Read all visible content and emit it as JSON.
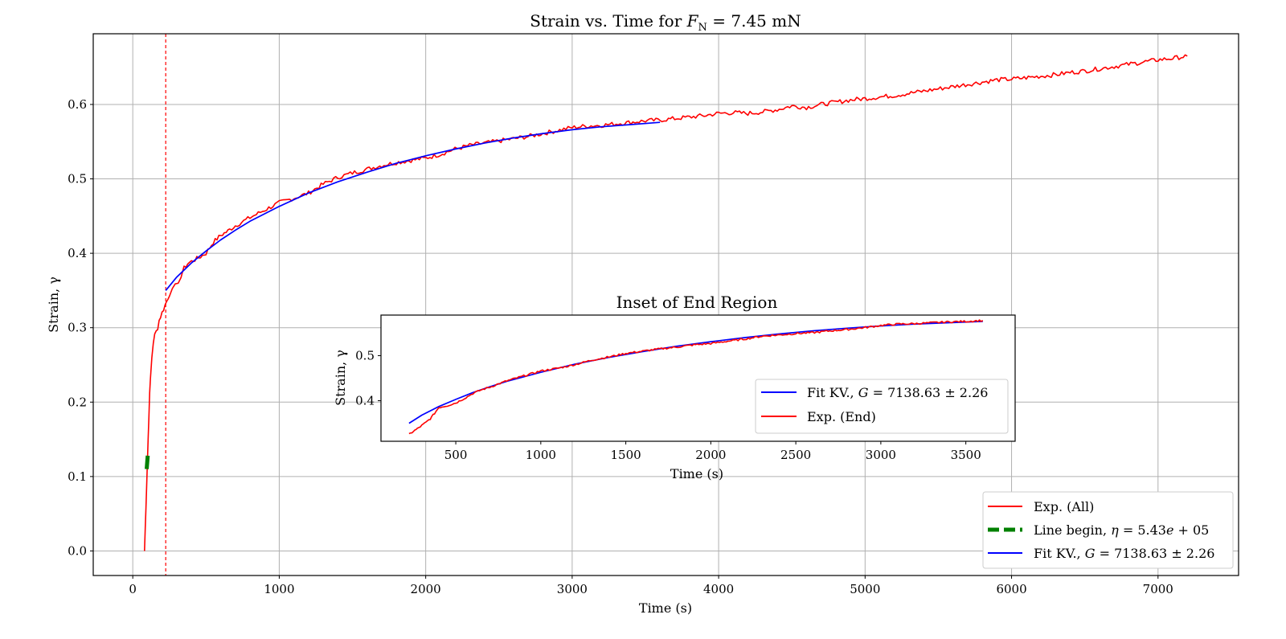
{
  "chart_data": [
    {
      "type": "line",
      "title": "Strain vs. Time for F_N = 7.45 mN",
      "title_parts": {
        "prefix": "Strain vs. Time for ",
        "symbol": "F",
        "subscript": "N",
        "suffix": " = 7.45 mN"
      },
      "xlabel": "Time (s)",
      "ylabel": "Strain, γ",
      "xlim": [
        -270,
        7550
      ],
      "ylim": [
        -0.033,
        0.695
      ],
      "xticks": [
        0,
        1000,
        2000,
        3000,
        4000,
        5000,
        6000,
        7000
      ],
      "yticks": [
        0.0,
        0.1,
        0.2,
        0.3,
        0.4,
        0.5,
        0.6
      ],
      "ytick_labels": [
        "0.0",
        "0.1",
        "0.2",
        "0.3",
        "0.4",
        "0.5",
        "0.6"
      ],
      "grid": true,
      "legend_position": "bottom-right",
      "legend": [
        {
          "label": "Exp. (All)",
          "color": "#ff0000",
          "style": "solid"
        },
        {
          "label": "Line begin, η = 5.43e + 05",
          "color": "#008000",
          "style": "dashed"
        },
        {
          "label": "Fit KV., G = 7138.63 ± 2.26",
          "color": "#0000ff",
          "style": "solid"
        }
      ],
      "vline": {
        "x": 225,
        "color": "#ff0000",
        "style": "dashed"
      },
      "series": [
        {
          "name": "Exp. (All)",
          "color": "#ff0000",
          "x": [
            80,
            85,
            90,
            95,
            100,
            105,
            110,
            115,
            120,
            130,
            140,
            150,
            160,
            170,
            180,
            190,
            200,
            210,
            220,
            230,
            240,
            250,
            270,
            290,
            310,
            330,
            350,
            375,
            400,
            450,
            500,
            550,
            600,
            650,
            700,
            800,
            900,
            1000,
            1100,
            1200,
            1300,
            1400,
            1500,
            1600,
            1700,
            1800,
            1900,
            2000,
            2100,
            2200,
            2300,
            2400,
            2500,
            2600,
            2700,
            2800,
            2900,
            3000,
            3100,
            3200,
            3300,
            3400,
            3500,
            3600,
            3700,
            3800,
            3900,
            4000,
            4100,
            4200,
            4300,
            4400,
            4500,
            4600,
            4700,
            4800,
            4900,
            5000,
            5100,
            5200,
            5300,
            5400,
            5500,
            5600,
            5700,
            5800,
            5900,
            6000,
            6100,
            6200,
            6300,
            6400,
            6500,
            6600,
            6700,
            6800,
            6900,
            7000,
            7100,
            7200
          ],
          "y": [
            0.0,
            0.03,
            0.06,
            0.09,
            0.12,
            0.15,
            0.18,
            0.21,
            0.23,
            0.26,
            0.28,
            0.29,
            0.295,
            0.3,
            0.31,
            0.315,
            0.32,
            0.325,
            0.33,
            0.335,
            0.34,
            0.345,
            0.35,
            0.356,
            0.362,
            0.368,
            0.38,
            0.386,
            0.389,
            0.394,
            0.4,
            0.415,
            0.424,
            0.43,
            0.437,
            0.448,
            0.458,
            0.468,
            0.474,
            0.481,
            0.493,
            0.502,
            0.508,
            0.513,
            0.518,
            0.522,
            0.525,
            0.528,
            0.533,
            0.54,
            0.545,
            0.548,
            0.551,
            0.554,
            0.557,
            0.561,
            0.565,
            0.569,
            0.571,
            0.572,
            0.574,
            0.576,
            0.578,
            0.579,
            0.581,
            0.583,
            0.585,
            0.588,
            0.589,
            0.588,
            0.59,
            0.593,
            0.598,
            0.596,
            0.6,
            0.603,
            0.606,
            0.608,
            0.61,
            0.612,
            0.615,
            0.618,
            0.621,
            0.624,
            0.627,
            0.63,
            0.633,
            0.634,
            0.636,
            0.638,
            0.64,
            0.643,
            0.645,
            0.648,
            0.651,
            0.654,
            0.657,
            0.66,
            0.662,
            0.665
          ]
        },
        {
          "name": "Line begin, η = 5.43e + 05",
          "color": "#008000",
          "x": [
            95,
            102
          ],
          "y": [
            0.11,
            0.128
          ]
        },
        {
          "name": "Fit KV., G = 7138.63 ± 2.26",
          "color": "#0000ff",
          "x": [
            225,
            300,
            400,
            500,
            600,
            700,
            800,
            900,
            1000,
            1200,
            1400,
            1600,
            1800,
            2000,
            2200,
            2400,
            2600,
            2800,
            3000,
            3200,
            3400,
            3600
          ],
          "y": [
            0.35,
            0.368,
            0.387,
            0.403,
            0.418,
            0.431,
            0.443,
            0.453,
            0.463,
            0.481,
            0.496,
            0.509,
            0.521,
            0.531,
            0.54,
            0.548,
            0.555,
            0.561,
            0.566,
            0.57,
            0.573,
            0.576
          ]
        }
      ]
    },
    {
      "type": "line",
      "title": "Inset of End Region",
      "xlabel": "Time (s)",
      "ylabel": "Strain, γ",
      "xlim": [
        60,
        3790
      ],
      "ylim": [
        0.31,
        0.59
      ],
      "xticks": [
        500,
        1000,
        1500,
        2000,
        2500,
        3000,
        3500
      ],
      "yticks": [
        0.4,
        0.5
      ],
      "ytick_labels": [
        "0.4",
        "0.5"
      ],
      "grid": false,
      "legend_position": "lower-right",
      "legend": [
        {
          "label": "Fit KV., G = 7138.63 ± 2.26",
          "color": "#0000ff",
          "style": "solid"
        },
        {
          "label": "Exp. (End)",
          "color": "#ff0000",
          "style": "solid"
        }
      ],
      "series": [
        {
          "name": "Fit KV., G = 7138.63 ± 2.26",
          "color": "#0000ff",
          "x": [
            225,
            300,
            400,
            500,
            600,
            700,
            800,
            900,
            1000,
            1200,
            1400,
            1600,
            1800,
            2000,
            2200,
            2400,
            2600,
            2800,
            3000,
            3200,
            3400,
            3600
          ],
          "y": [
            0.35,
            0.368,
            0.387,
            0.403,
            0.418,
            0.431,
            0.443,
            0.453,
            0.463,
            0.481,
            0.496,
            0.509,
            0.521,
            0.531,
            0.54,
            0.548,
            0.555,
            0.561,
            0.566,
            0.57,
            0.573,
            0.576
          ]
        },
        {
          "name": "Exp. (End)",
          "color": "#ff0000",
          "x": [
            225,
            250,
            275,
            300,
            325,
            350,
            375,
            400,
            450,
            500,
            550,
            600,
            650,
            700,
            800,
            900,
            1000,
            1100,
            1200,
            1300,
            1400,
            1500,
            1600,
            1700,
            1800,
            1900,
            2000,
            2100,
            2200,
            2300,
            2400,
            2500,
            2600,
            2700,
            2800,
            2900,
            3000,
            3100,
            3200,
            3300,
            3400,
            3500,
            3600
          ],
          "y": [
            0.325,
            0.332,
            0.338,
            0.345,
            0.352,
            0.36,
            0.372,
            0.385,
            0.389,
            0.395,
            0.405,
            0.416,
            0.424,
            0.43,
            0.444,
            0.455,
            0.466,
            0.472,
            0.48,
            0.49,
            0.497,
            0.505,
            0.51,
            0.515,
            0.519,
            0.524,
            0.527,
            0.532,
            0.537,
            0.543,
            0.546,
            0.549,
            0.551,
            0.555,
            0.558,
            0.562,
            0.567,
            0.57,
            0.571,
            0.573,
            0.575,
            0.576,
            0.578
          ]
        }
      ]
    }
  ]
}
